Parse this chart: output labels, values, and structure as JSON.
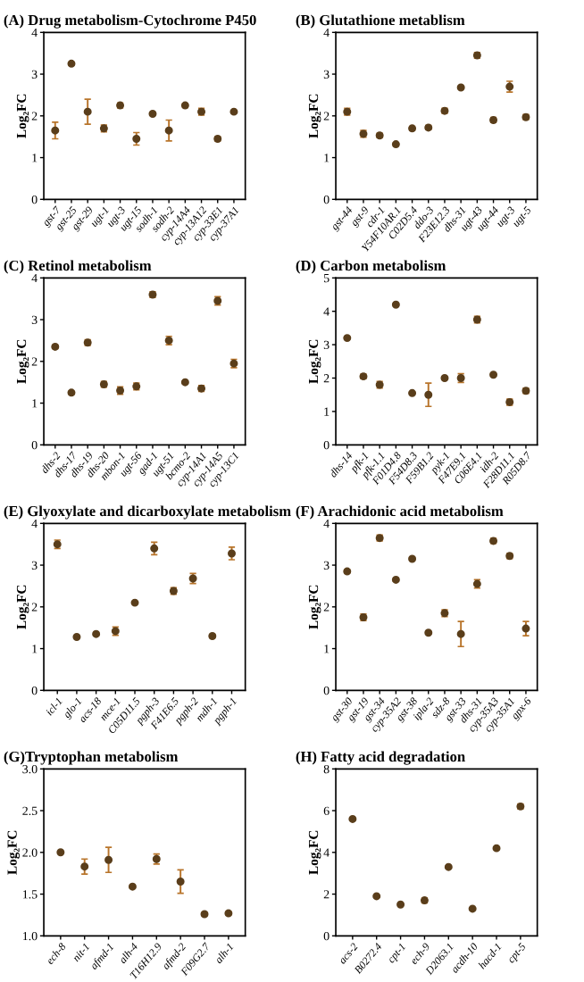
{
  "chart_data": [
    {
      "type": "scatter",
      "title": "(A) Drug metabolism-Cytochrome P450",
      "ylabel": "Log₂FC",
      "color": "#5a3e1b",
      "marker": "circle",
      "ylim": [
        0,
        4
      ],
      "yticks": [
        0,
        1,
        2,
        3,
        4
      ],
      "categories": [
        "gst-7",
        "gst-25",
        "gst-29",
        "ugt-1",
        "ugt-3",
        "ugt-15",
        "sodh-1",
        "sodh-2",
        "cyp-14A4",
        "cyp-13A12",
        "cyp-33E1",
        "cyp-37A1"
      ],
      "values": [
        1.65,
        3.25,
        2.1,
        1.7,
        2.25,
        1.45,
        2.05,
        1.65,
        2.25,
        2.1,
        1.45,
        2.1
      ],
      "errors": [
        0.2,
        0.04,
        0.3,
        0.08,
        0.06,
        0.15,
        0.03,
        0.25,
        0.05,
        0.08,
        0.05,
        0.03
      ]
    },
    {
      "type": "scatter",
      "title": "(B) Glutathione metablism",
      "ylabel": "Log₂FC",
      "color": "#5a3e1b",
      "marker": "circle",
      "ylim": [
        0,
        4
      ],
      "yticks": [
        0,
        1,
        2,
        3,
        4
      ],
      "categories": [
        "gst-44",
        "gst-9",
        "cdr-1",
        "Y54F10AR.1",
        "C02D5.4",
        "ddo-3",
        "F23E12.3",
        "dhs-31",
        "ugt-43",
        "ugt-44",
        "ugt-3",
        "ugt-5"
      ],
      "values": [
        2.1,
        1.57,
        1.53,
        1.32,
        1.7,
        1.72,
        2.12,
        2.68,
        3.45,
        1.9,
        2.7,
        1.97
      ],
      "errors": [
        0.08,
        0.08,
        0.05,
        0.04,
        0.05,
        0.05,
        0.06,
        0.03,
        0.07,
        0.06,
        0.13,
        0.06
      ]
    },
    {
      "type": "scatter",
      "title": "(C) Retinol metabolism",
      "ylabel": "Log₂FC",
      "color": "#5a3e1b",
      "marker": "circle",
      "ylim": [
        0,
        4
      ],
      "yticks": [
        0,
        1,
        2,
        3,
        4
      ],
      "categories": [
        "dhs-2",
        "dhs-17",
        "dhs-19",
        "dhs-20",
        "mbon-1",
        "ugt-56",
        "gad-1",
        "ugt-51",
        "bcmo-2",
        "cyp-14A1",
        "cyp-14A5",
        "cyp-13C1"
      ],
      "values": [
        2.35,
        1.25,
        2.45,
        1.45,
        1.3,
        1.4,
        3.6,
        2.5,
        1.5,
        1.35,
        3.45,
        1.95
      ],
      "errors": [
        0.04,
        0.04,
        0.07,
        0.07,
        0.09,
        0.08,
        0.07,
        0.1,
        0.03,
        0.07,
        0.1,
        0.1
      ]
    },
    {
      "type": "scatter",
      "title": "(D) Carbon metabolism",
      "ylabel": "Log₂FC",
      "color": "#5a3e1b",
      "marker": "circle",
      "ylim": [
        0,
        5
      ],
      "yticks": [
        0,
        1,
        2,
        3,
        4,
        5
      ],
      "categories": [
        "dhs-14",
        "pfk-1",
        "pfk-1.1",
        "F01D4.8",
        "F54D8.3",
        "F59B1.2",
        "pyk-1",
        "F47E9.1",
        "C06E4.1",
        "idh-2",
        "F28D11.1",
        "R05D8.7"
      ],
      "values": [
        3.2,
        2.05,
        1.8,
        4.2,
        1.55,
        1.5,
        2.0,
        2.0,
        3.75,
        2.1,
        1.28,
        1.62
      ],
      "errors": [
        0.04,
        0.07,
        0.1,
        0.04,
        0.04,
        0.35,
        0.04,
        0.13,
        0.1,
        0.04,
        0.09,
        0.08
      ]
    },
    {
      "type": "scatter",
      "title": "(E) Glyoxylate and dicarboxylate metabolism",
      "ylabel": "Log₂FC",
      "color": "#5a3e1b",
      "marker": "circle",
      "ylim": [
        0,
        4
      ],
      "yticks": [
        0,
        1,
        2,
        3,
        4
      ],
      "categories": [
        "icl-1",
        "glo-1",
        "acs-18",
        "mce-1",
        "C05D11.5",
        "pgph-3",
        "F41E6.5",
        "pgph-2",
        "mdh-1",
        "pgph-1"
      ],
      "values": [
        3.5,
        1.28,
        1.35,
        1.42,
        2.1,
        3.4,
        2.38,
        2.68,
        1.3,
        3.28
      ],
      "errors": [
        0.1,
        0.03,
        0.04,
        0.1,
        0.03,
        0.15,
        0.08,
        0.12,
        0.04,
        0.15
      ]
    },
    {
      "type": "scatter",
      "title": "(F) Arachidonic acid metabolism",
      "ylabel": "Log₂FC",
      "color": "#5a3e1b",
      "marker": "circle",
      "ylim": [
        0,
        4
      ],
      "yticks": [
        0,
        1,
        2,
        3,
        4
      ],
      "categories": [
        "gst-30",
        "gst-19",
        "gst-34",
        "cyp-35A2",
        "gst-38",
        "ipla-2",
        "sdz-8",
        "gst-33",
        "dhs-31",
        "cyp-35A3",
        "cyp-35A1",
        "gpx-6"
      ],
      "values": [
        2.85,
        1.75,
        3.65,
        2.65,
        3.15,
        1.38,
        1.85,
        1.35,
        2.55,
        3.58,
        3.22,
        1.48
      ],
      "errors": [
        0.04,
        0.08,
        0.07,
        0.04,
        0.04,
        0.03,
        0.08,
        0.3,
        0.1,
        0.06,
        0.06,
        0.17
      ]
    },
    {
      "type": "scatter",
      "title": "(G)Tryptophan metabolism",
      "ylabel": "Log₂FC",
      "color": "#5a3e1b",
      "marker": "circle",
      "ylim": [
        1.0,
        3.0
      ],
      "yticks": [
        {
          "value": 1.0,
          "label": "1.0"
        },
        {
          "value": 1.5,
          "label": "1.5"
        },
        {
          "value": 2.0,
          "label": "2.0"
        },
        {
          "value": 2.5,
          "label": "2.5"
        },
        {
          "value": 3.0,
          "label": "3.0"
        }
      ],
      "categories": [
        "ech-8",
        "nit-1",
        "afmd-1",
        "alh-4",
        "T16H12.9",
        "afmd-2",
        "F09G2.7",
        "alh-1"
      ],
      "values": [
        2.0,
        1.83,
        1.91,
        1.59,
        1.92,
        1.65,
        1.26,
        1.27
      ],
      "errors": [
        0.01,
        0.09,
        0.15,
        0.02,
        0.06,
        0.14,
        0.02,
        0.02
      ]
    },
    {
      "type": "scatter",
      "title": "(H) Fatty acid degradation",
      "ylabel": "Log₂FC",
      "color": "#5a3e1b",
      "marker": "circle",
      "ylim": [
        0,
        8
      ],
      "yticks": [
        0,
        2,
        4,
        6,
        8
      ],
      "categories": [
        "acs-2",
        "B0272.4",
        "cpt-1",
        "ech-9",
        "D2063.1",
        "acdh-10",
        "hacd-1",
        "cpt-5"
      ],
      "values": [
        5.6,
        1.9,
        1.5,
        1.7,
        3.3,
        1.3,
        4.2,
        6.2
      ],
      "errors": [
        0.05,
        0.05,
        0.05,
        0.12,
        0.05,
        0.04,
        0.05,
        0.12
      ]
    }
  ]
}
